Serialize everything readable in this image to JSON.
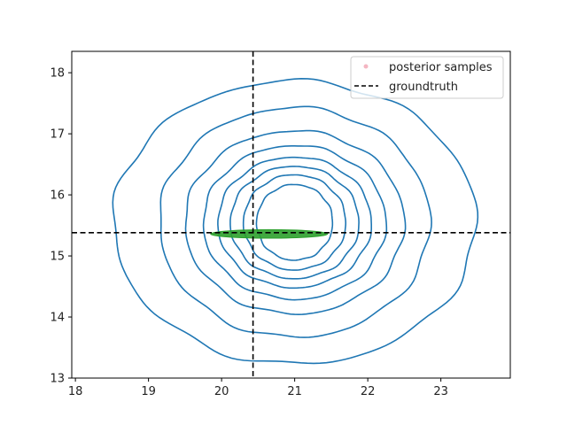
{
  "chart_data": {
    "type": "contour",
    "title": "",
    "xlabel": "",
    "ylabel": "",
    "xlim": [
      17.95,
      23.95
    ],
    "ylim": [
      13.0,
      18.35
    ],
    "xticks": [
      18,
      19,
      20,
      21,
      22,
      23
    ],
    "yticks": [
      13,
      14,
      15,
      16,
      17,
      18
    ],
    "xtick_labels": [
      "18",
      "19",
      "20",
      "21",
      "22",
      "23"
    ],
    "ytick_labels": [
      "13",
      "14",
      "15",
      "16",
      "17",
      "18"
    ],
    "grid": false,
    "legend": {
      "placement": "top-right",
      "entries": [
        {
          "label": "posterior samples",
          "marker": "point",
          "color": "#f4b6c2"
        },
        {
          "label": "groundtruth",
          "marker": "dashed-line",
          "color": "#000000"
        }
      ]
    },
    "groundtruth": {
      "x": 20.43,
      "y": 15.38
    },
    "contours": {
      "color": "#1f77b4",
      "center": [
        21.0,
        15.55
      ],
      "levels": [
        {
          "rx": 2.48,
          "ry": 2.32
        },
        {
          "rx": 1.85,
          "ry": 1.88
        },
        {
          "rx": 1.5,
          "ry": 1.5
        },
        {
          "rx": 1.25,
          "ry": 1.26
        },
        {
          "rx": 1.05,
          "ry": 1.07
        },
        {
          "rx": 0.88,
          "ry": 0.92
        },
        {
          "rx": 0.7,
          "ry": 0.78
        },
        {
          "rx": 0.52,
          "ry": 0.62
        }
      ]
    },
    "posterior_region": {
      "color": "#2ca02c",
      "center": [
        20.65,
        15.36
      ],
      "rx": 0.8,
      "ry": 0.07
    }
  }
}
